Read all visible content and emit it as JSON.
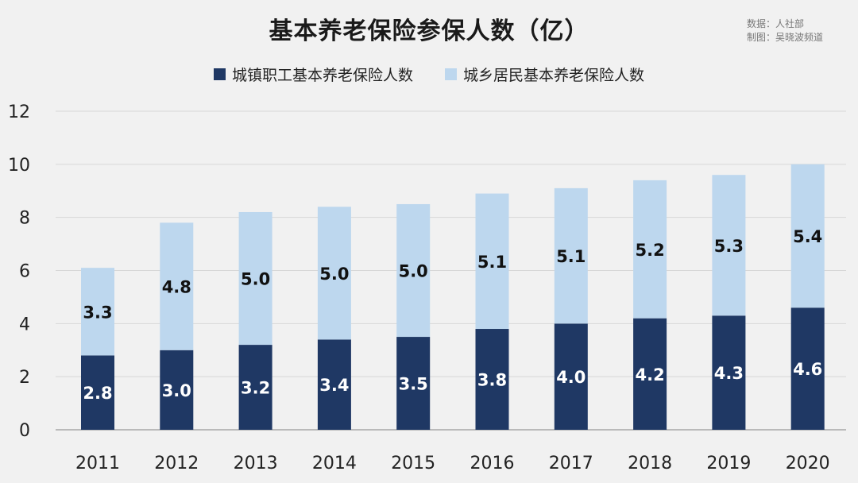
{
  "title": "基本养老保险参保人数（亿）",
  "source_lines": [
    "数据：人社部",
    "制图：吴晓波频道"
  ],
  "colors": {
    "employee": "#1f3864",
    "resident": "#bdd7ee",
    "background": "#f1f1f1"
  },
  "chart_data": {
    "type": "bar",
    "stacked": true,
    "title": "基本养老保险参保人数（亿）",
    "categories": [
      "2011",
      "2012",
      "2013",
      "2014",
      "2015",
      "2016",
      "2017",
      "2018",
      "2019",
      "2020"
    ],
    "series": [
      {
        "name": "城镇职工基本养老保险人数",
        "values": [
          2.8,
          3.0,
          3.2,
          3.4,
          3.5,
          3.8,
          4.0,
          4.2,
          4.3,
          4.6
        ]
      },
      {
        "name": "城乡居民基本养老保险人数",
        "values": [
          3.3,
          4.8,
          5.0,
          5.0,
          5.0,
          5.1,
          5.1,
          5.2,
          5.3,
          5.4
        ]
      }
    ],
    "ylim": [
      0,
      12
    ],
    "yticks": [
      0,
      2,
      4,
      6,
      8,
      10,
      12
    ],
    "grid": true,
    "legend": "top"
  }
}
